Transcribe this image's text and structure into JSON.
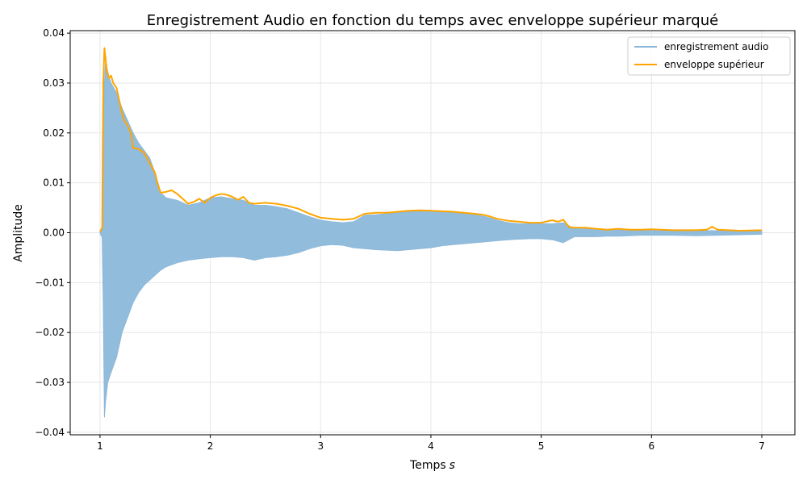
{
  "chart_data": {
    "type": "line",
    "title": "Enregistrement Audio en fonction du temps avec enveloppe supérieur marqué",
    "xlabel": "Temps",
    "xlabel_unit": "s",
    "ylabel": "Amplitude",
    "xlim": [
      0.73,
      7.3
    ],
    "ylim": [
      -0.0405,
      0.0405
    ],
    "x_ticks": [
      1,
      2,
      3,
      4,
      5,
      6,
      7
    ],
    "x_tick_labels": [
      "1",
      "2",
      "3",
      "4",
      "5",
      "6",
      "7"
    ],
    "y_ticks": [
      0.04,
      0.03,
      0.02,
      0.01,
      0.0,
      -0.01,
      -0.02,
      -0.03,
      -0.04
    ],
    "y_tick_labels": [
      "0.04",
      "0.03",
      "0.02",
      "0.01",
      "0.00",
      "−0.01",
      "−0.02",
      "−0.03",
      "−0.04"
    ],
    "grid": true,
    "legend_position": "top-right",
    "series": [
      {
        "name": "enregistrement audio",
        "color": "#8cb8da",
        "kind": "band",
        "x": [
          1.0,
          1.02,
          1.03,
          1.04,
          1.05,
          1.07,
          1.1,
          1.15,
          1.2,
          1.25,
          1.3,
          1.35,
          1.4,
          1.45,
          1.5,
          1.55,
          1.6,
          1.7,
          1.8,
          1.9,
          2.0,
          2.1,
          2.2,
          2.3,
          2.4,
          2.5,
          2.6,
          2.7,
          2.8,
          2.9,
          3.0,
          3.1,
          3.2,
          3.3,
          3.4,
          3.5,
          3.6,
          3.7,
          3.8,
          3.9,
          4.0,
          4.1,
          4.2,
          4.3,
          4.4,
          4.5,
          4.6,
          4.7,
          4.8,
          4.9,
          5.0,
          5.1,
          5.2,
          5.3,
          5.4,
          5.5,
          5.6,
          5.7,
          5.8,
          5.9,
          6.0,
          6.2,
          6.4,
          6.6,
          6.8,
          7.0
        ],
        "upper": [
          0.0,
          0.001,
          0.02,
          0.03,
          0.034,
          0.032,
          0.03,
          0.028,
          0.025,
          0.0225,
          0.02,
          0.018,
          0.0165,
          0.015,
          0.012,
          0.008,
          0.007,
          0.0065,
          0.0055,
          0.006,
          0.007,
          0.0072,
          0.0068,
          0.0065,
          0.0055,
          0.0055,
          0.0052,
          0.0048,
          0.004,
          0.0032,
          0.0025,
          0.0022,
          0.002,
          0.0022,
          0.0035,
          0.0036,
          0.0038,
          0.004,
          0.0042,
          0.0044,
          0.0043,
          0.0042,
          0.004,
          0.0038,
          0.0036,
          0.0032,
          0.0025,
          0.002,
          0.0018,
          0.0018,
          0.0018,
          0.0018,
          0.002,
          0.0008,
          0.0008,
          0.0008,
          0.0006,
          0.0006,
          0.0005,
          0.0004,
          0.0005,
          0.0004,
          0.0004,
          0.0004,
          0.0004,
          0.0003
        ],
        "lower": [
          0.0,
          -0.001,
          -0.015,
          -0.037,
          -0.034,
          -0.03,
          -0.028,
          -0.025,
          -0.02,
          -0.017,
          -0.014,
          -0.012,
          -0.0105,
          -0.0095,
          -0.0085,
          -0.0075,
          -0.0068,
          -0.006,
          -0.0055,
          -0.0052,
          -0.005,
          -0.0048,
          -0.0048,
          -0.005,
          -0.0055,
          -0.005,
          -0.0048,
          -0.0045,
          -0.004,
          -0.0032,
          -0.0026,
          -0.0024,
          -0.0025,
          -0.003,
          -0.0032,
          -0.0034,
          -0.0035,
          -0.0036,
          -0.0034,
          -0.0032,
          -0.003,
          -0.0026,
          -0.0024,
          -0.0022,
          -0.002,
          -0.0018,
          -0.0016,
          -0.0014,
          -0.0013,
          -0.0012,
          -0.0012,
          -0.0014,
          -0.002,
          -0.0008,
          -0.0008,
          -0.0008,
          -0.0007,
          -0.0007,
          -0.0006,
          -0.0005,
          -0.0005,
          -0.0005,
          -0.0006,
          -0.0005,
          -0.0004,
          -0.0003
        ]
      },
      {
        "name": "enveloppe supérieur",
        "color": "#ffa500",
        "kind": "line",
        "x": [
          1.0,
          1.02,
          1.03,
          1.04,
          1.05,
          1.06,
          1.08,
          1.1,
          1.12,
          1.15,
          1.18,
          1.2,
          1.22,
          1.25,
          1.28,
          1.3,
          1.35,
          1.4,
          1.45,
          1.5,
          1.52,
          1.55,
          1.6,
          1.65,
          1.7,
          1.75,
          1.8,
          1.85,
          1.9,
          1.95,
          2.0,
          2.05,
          2.1,
          2.15,
          2.2,
          2.25,
          2.3,
          2.35,
          2.4,
          2.5,
          2.6,
          2.7,
          2.8,
          2.9,
          3.0,
          3.1,
          3.2,
          3.3,
          3.4,
          3.5,
          3.6,
          3.7,
          3.8,
          3.9,
          4.0,
          4.1,
          4.2,
          4.3,
          4.4,
          4.5,
          4.6,
          4.7,
          4.8,
          4.9,
          5.0,
          5.1,
          5.15,
          5.2,
          5.25,
          5.3,
          5.4,
          5.5,
          5.6,
          5.7,
          5.8,
          5.9,
          6.0,
          6.2,
          6.4,
          6.5,
          6.55,
          6.6,
          6.8,
          7.0
        ],
        "y": [
          0.0002,
          0.001,
          0.03,
          0.037,
          0.035,
          0.033,
          0.031,
          0.0315,
          0.03,
          0.029,
          0.026,
          0.024,
          0.0225,
          0.0215,
          0.02,
          0.017,
          0.0168,
          0.016,
          0.014,
          0.012,
          0.01,
          0.008,
          0.0082,
          0.0085,
          0.0078,
          0.0068,
          0.0058,
          0.0062,
          0.0068,
          0.006,
          0.007,
          0.0075,
          0.0078,
          0.0076,
          0.0072,
          0.0066,
          0.0072,
          0.006,
          0.0058,
          0.006,
          0.0058,
          0.0054,
          0.0048,
          0.0038,
          0.003,
          0.0028,
          0.0026,
          0.0028,
          0.0038,
          0.004,
          0.004,
          0.0042,
          0.0044,
          0.0045,
          0.0044,
          0.0043,
          0.0042,
          0.004,
          0.0038,
          0.0035,
          0.0028,
          0.0024,
          0.0022,
          0.002,
          0.002,
          0.0025,
          0.0022,
          0.0026,
          0.0012,
          0.001,
          0.001,
          0.0008,
          0.0006,
          0.0008,
          0.0006,
          0.0006,
          0.0007,
          0.0005,
          0.0005,
          0.0006,
          0.0012,
          0.0006,
          0.0004,
          0.0005
        ]
      }
    ]
  }
}
